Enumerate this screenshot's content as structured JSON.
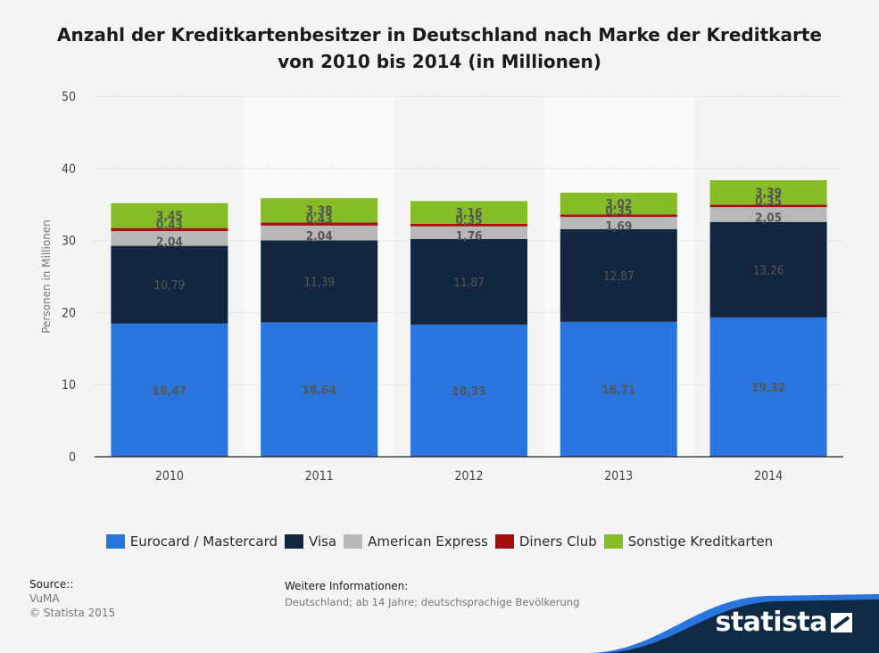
{
  "title_line1": "Anzahl der Kreditkartenbesitzer in Deutschland nach Marke der Kreditkarte",
  "title_line2": "von 2010 bis 2014 (in Millionen)",
  "chart_data": {
    "type": "bar",
    "stacked": true,
    "categories": [
      "2010",
      "2011",
      "2012",
      "2013",
      "2014"
    ],
    "series": [
      {
        "name": "Eurocard / Mastercard",
        "color": "#2a75dd",
        "values": [
          18.47,
          18.64,
          18.33,
          18.71,
          19.32
        ],
        "labels": [
          "18,47",
          "18,64",
          "18,33",
          "18,71",
          "19,32"
        ]
      },
      {
        "name": "Visa",
        "color": "#12263f",
        "values": [
          10.79,
          11.39,
          11.87,
          12.87,
          13.26
        ],
        "labels": [
          "10,79",
          "11,39",
          "11,87",
          "12,87",
          "13,26"
        ]
      },
      {
        "name": "American Express",
        "color": "#b8b8b8",
        "values": [
          2.04,
          2.04,
          1.76,
          1.69,
          2.05
        ],
        "labels": [
          "2,04",
          "2,04",
          "1,76",
          "1,69",
          "2,05"
        ]
      },
      {
        "name": "Diners Club",
        "color": "#a50f0f",
        "values": [
          0.43,
          0.43,
          0.35,
          0.35,
          0.35
        ],
        "labels": [
          "0,43",
          "0,43",
          "0,35",
          "0,35",
          "0,35"
        ]
      },
      {
        "name": "Sonstige Kreditkarten",
        "color": "#86bc25",
        "values": [
          3.45,
          3.38,
          3.16,
          3.02,
          3.39
        ],
        "labels": [
          "3,45",
          "3,38",
          "3,16",
          "3,02",
          "3,39"
        ]
      }
    ],
    "title": "Anzahl der Kreditkartenbesitzer in Deutschland nach Marke der Kreditkarte von 2010 bis 2014 (in Millionen)",
    "xlabel": "",
    "ylabel": "Personen in Millionen",
    "ylim": [
      0,
      50
    ],
    "yticks": [
      0,
      10,
      20,
      30,
      40,
      50
    ],
    "grid": true,
    "legend": "bottom"
  },
  "source": {
    "label": "Source::",
    "lines": [
      "VuMA",
      "© Statista 2015"
    ]
  },
  "info": {
    "label": "Weitere Informationen:",
    "text": "Deutschland; ab 14 Jahre; deutschsprachige Bevölkerung"
  },
  "brand": "statista"
}
